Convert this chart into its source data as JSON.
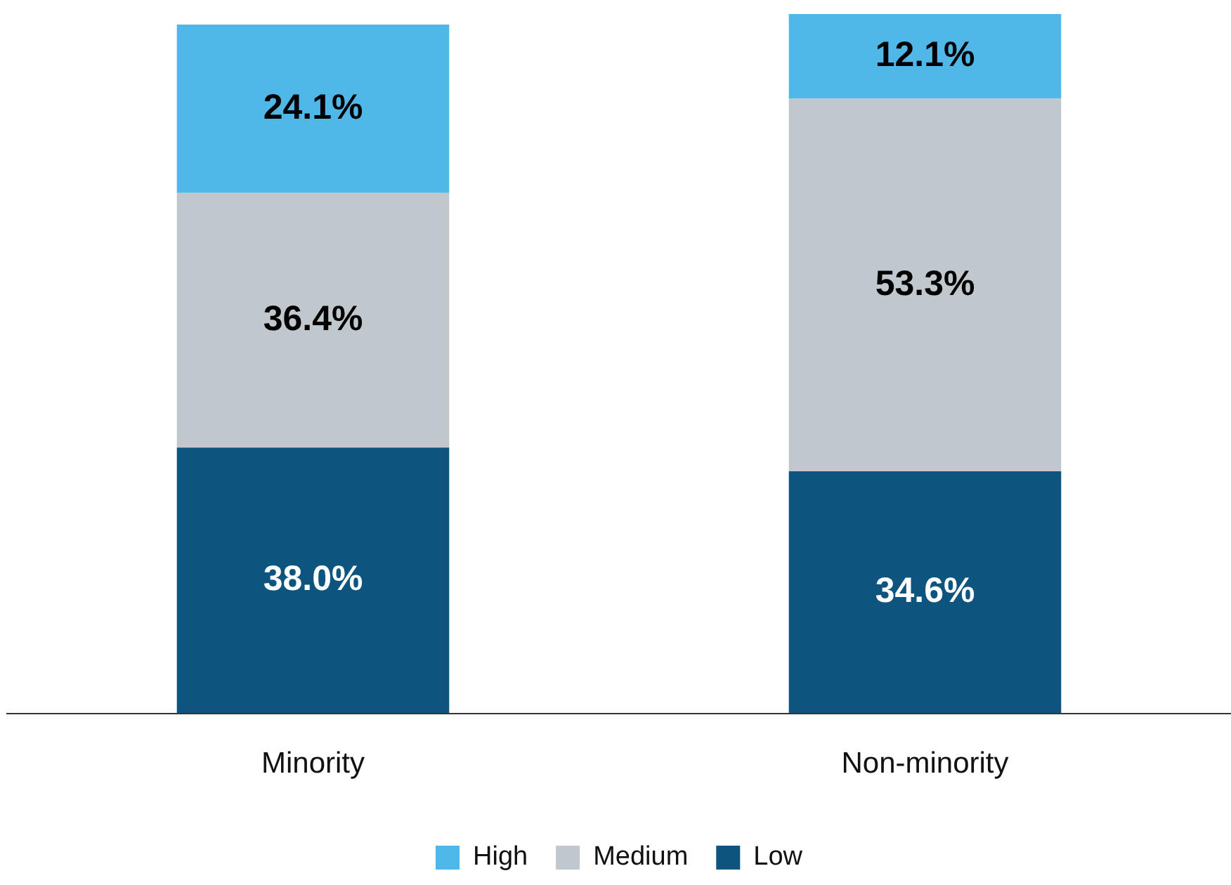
{
  "chart_data": {
    "type": "bar",
    "stacked": true,
    "categories": [
      "Minority",
      "Non-minority"
    ],
    "series": [
      {
        "name": "Low",
        "color": "#0d557f",
        "values": [
          38.0,
          34.6
        ],
        "value_labels": [
          "38.0%",
          "34.6%"
        ]
      },
      {
        "name": "Medium",
        "color": "#c0c7cd",
        "values": [
          36.4,
          53.3
        ],
        "value_labels": [
          "36.4%",
          "53.3%"
        ]
      },
      {
        "name": "High",
        "color": "#4fb8e9",
        "values": [
          24.1,
          12.1
        ],
        "value_labels": [
          "24.1%",
          "12.1%"
        ]
      }
    ],
    "grid": false,
    "legend": "bottom"
  }
}
